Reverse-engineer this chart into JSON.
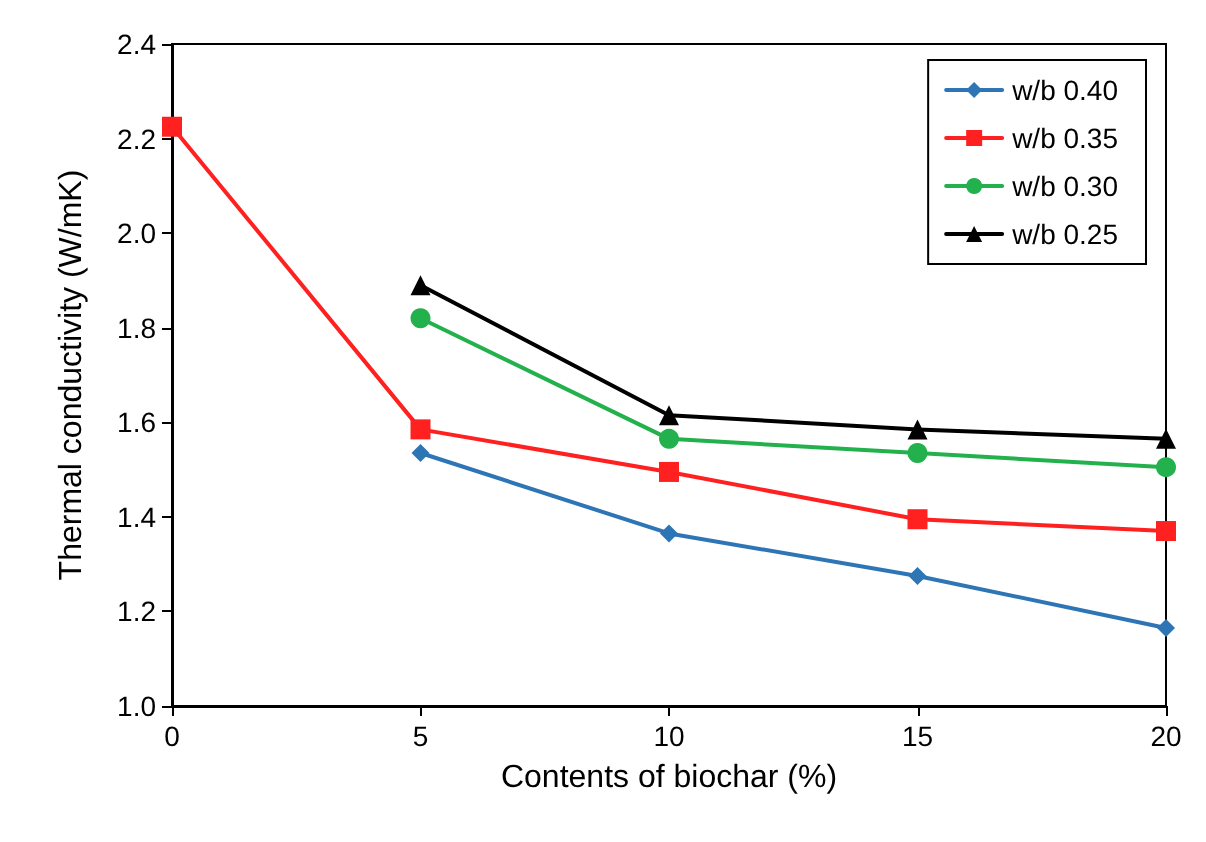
{
  "chart_data": {
    "type": "line",
    "xlabel": "Contents of biochar (%)",
    "ylabel": "Thermal conductivity (W/mK)",
    "xlim": [
      0,
      20
    ],
    "xticks": [
      0,
      5,
      10,
      15,
      20
    ],
    "ylim": [
      1.0,
      2.4
    ],
    "yticks": [
      {
        "value": 1.0,
        "label": "1.0"
      },
      {
        "value": 1.2,
        "label": "1.2"
      },
      {
        "value": 1.4,
        "label": "1.4"
      },
      {
        "value": 1.6,
        "label": "1.6"
      },
      {
        "value": 1.8,
        "label": "1.8"
      },
      {
        "value": 2.0,
        "label": "2.0"
      },
      {
        "value": 2.2,
        "label": "2.2"
      },
      {
        "value": 2.4,
        "label": "2.4"
      }
    ],
    "grid": false,
    "legend": "top right",
    "line_style": "solid",
    "series": [
      {
        "name": "w/b 0.40",
        "color": "#2e75b6",
        "marker": "diamond",
        "x": [
          5,
          10,
          15,
          20
        ],
        "values": [
          1.535,
          1.365,
          1.275,
          1.165
        ]
      },
      {
        "name": "w/b 0.35",
        "color": "#ff2020",
        "marker": "square",
        "x": [
          0,
          5,
          10,
          15,
          20
        ],
        "values": [
          2.225,
          1.585,
          1.495,
          1.395,
          1.37
        ]
      },
      {
        "name": "w/b 0.30",
        "color": "#22b14c",
        "marker": "circle",
        "x": [
          5,
          10,
          15,
          20
        ],
        "values": [
          1.82,
          1.565,
          1.535,
          1.505
        ]
      },
      {
        "name": "w/b 0.25",
        "color": "#000000",
        "marker": "triangle",
        "x": [
          5,
          10,
          15,
          20
        ],
        "values": [
          1.89,
          1.615,
          1.585,
          1.565
        ]
      }
    ]
  }
}
